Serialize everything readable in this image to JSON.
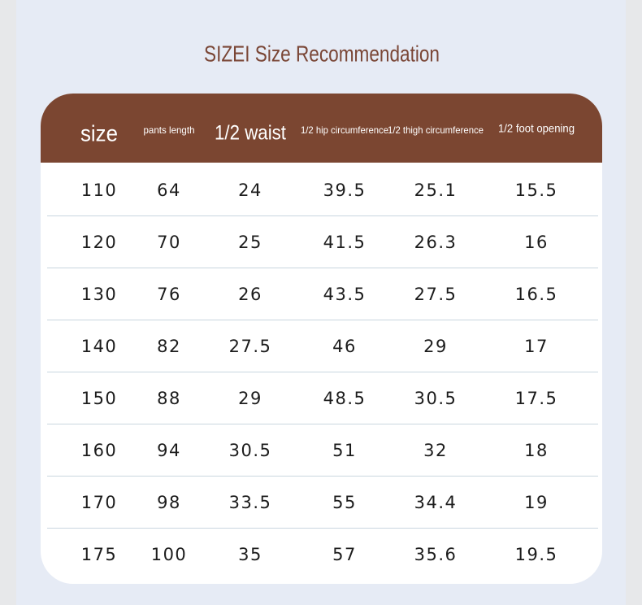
{
  "header": {
    "title": "SIZEI Size Recommendation"
  },
  "table": {
    "columns": [
      "size",
      "pants length",
      "1/2 waist",
      "1/2 hip circumference",
      "1/2 thigh circumference",
      "1/2 foot opening"
    ],
    "rows": [
      [
        110,
        64,
        24,
        39.5,
        25.1,
        15.5
      ],
      [
        120,
        70,
        25,
        41.5,
        26.3,
        16
      ],
      [
        130,
        76,
        26,
        43.5,
        27.5,
        16.5
      ],
      [
        140,
        82,
        27.5,
        46,
        29,
        17
      ],
      [
        150,
        88,
        29,
        48.5,
        30.5,
        17.5
      ],
      [
        160,
        94,
        30.5,
        51,
        32,
        18
      ],
      [
        170,
        98,
        33.5,
        55,
        34.4,
        19
      ],
      [
        175,
        100,
        35,
        57,
        35.6,
        19.5
      ]
    ]
  }
}
